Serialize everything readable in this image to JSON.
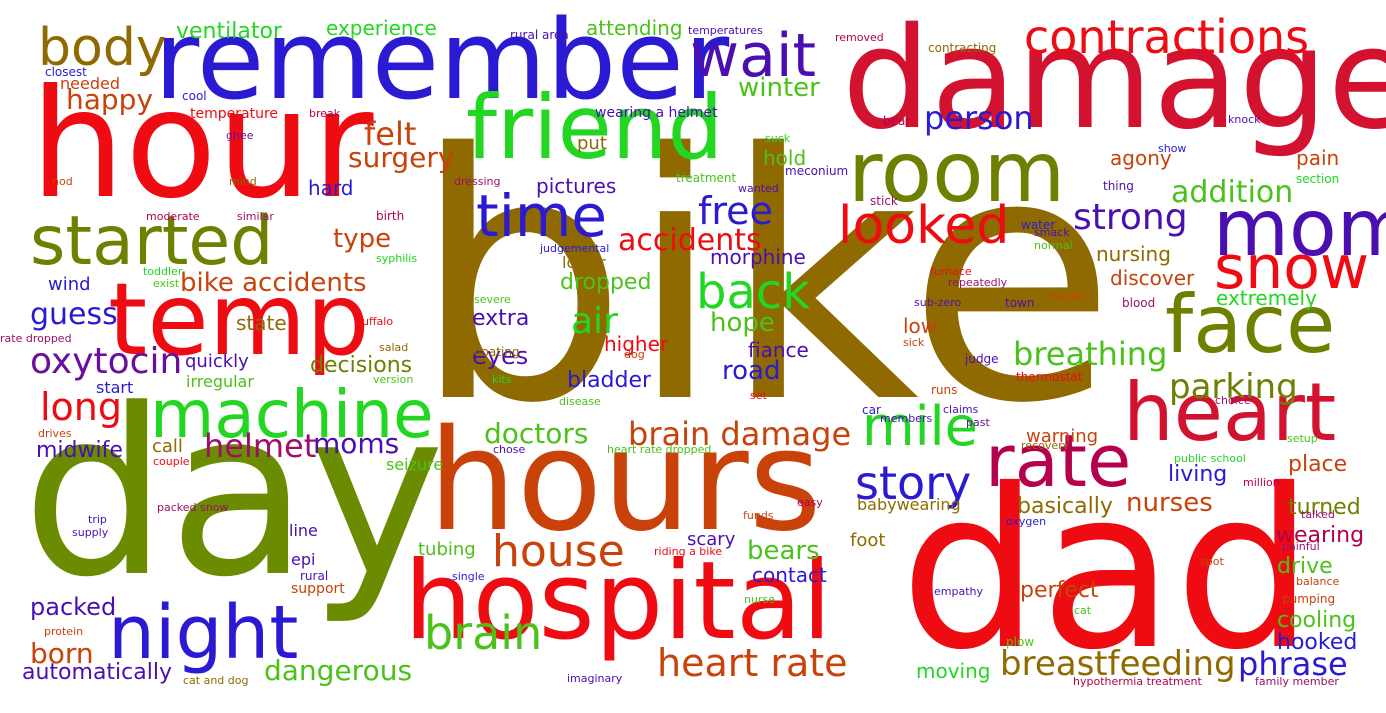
{
  "words": [
    {
      "text": "bike",
      "color": "#8f6a00"
    },
    {
      "text": "damage",
      "color": "#d2122e"
    },
    {
      "text": "dad",
      "color": "#ee0b12"
    },
    {
      "text": "day",
      "color": "#6b8c00"
    },
    {
      "text": "hours",
      "color": "#c8420a"
    },
    {
      "text": "hour",
      "color": "#ee0b12"
    },
    {
      "text": "remember",
      "color": "#2a1bd2"
    },
    {
      "text": "hospital",
      "color": "#ee0b12"
    },
    {
      "text": "room",
      "color": "#6f7f00"
    },
    {
      "text": "temp",
      "color": "#ee0b12"
    },
    {
      "text": "friend",
      "color": "#22d622"
    },
    {
      "text": "face",
      "color": "#6f7f00"
    },
    {
      "text": "heart",
      "color": "#d2122e"
    },
    {
      "text": "machine",
      "color": "#22d622"
    },
    {
      "text": "night",
      "color": "#2a1bd2"
    },
    {
      "text": "started",
      "color": "#6f7f00"
    },
    {
      "text": "rate",
      "color": "#b5004e"
    },
    {
      "text": "mom",
      "color": "#4b0fb1"
    },
    {
      "text": "time",
      "color": "#2a1bd2"
    },
    {
      "text": "wait",
      "color": "#4b0fb1"
    },
    {
      "text": "body",
      "color": "#8f6a00"
    },
    {
      "text": "snow",
      "color": "#ee0b12"
    },
    {
      "text": "contractions",
      "color": "#ee0b12"
    },
    {
      "text": "mile",
      "color": "#22d622"
    },
    {
      "text": "looked",
      "color": "#ee0b12"
    },
    {
      "text": "back",
      "color": "#22d622"
    },
    {
      "text": "house",
      "color": "#c8420a"
    },
    {
      "text": "brain",
      "color": "#4bc21a"
    },
    {
      "text": "heart rate",
      "color": "#c8420a"
    },
    {
      "text": "story",
      "color": "#2a1bd2"
    },
    {
      "text": "breastfeeding",
      "color": "#8f6a00"
    },
    {
      "text": "strong",
      "color": "#4b0fb1"
    },
    {
      "text": "free",
      "color": "#2a1bd2"
    },
    {
      "text": "long",
      "color": "#ee0b12"
    },
    {
      "text": "oxytocin",
      "color": "#6a0f9c"
    },
    {
      "text": "breathing",
      "color": "#4bc21a"
    },
    {
      "text": "brain damage",
      "color": "#c8420a"
    },
    {
      "text": "parking",
      "color": "#6f7f00"
    },
    {
      "text": "helmet",
      "color": "#9c0f6a"
    },
    {
      "text": "doctors",
      "color": "#4bc21a"
    },
    {
      "text": "addition",
      "color": "#4bc21a"
    },
    {
      "text": "accidents",
      "color": "#ee0b12"
    },
    {
      "text": "felt",
      "color": "#c8420a"
    },
    {
      "text": "person",
      "color": "#2a1bd2"
    },
    {
      "text": "surgery",
      "color": "#c8420a"
    },
    {
      "text": "happy",
      "color": "#c8420a"
    },
    {
      "text": "winter",
      "color": "#4bc21a"
    },
    {
      "text": "guess",
      "color": "#2a1bd2"
    },
    {
      "text": "bike accidents",
      "color": "#c8420a"
    },
    {
      "text": "moms",
      "color": "#4b0fb1"
    },
    {
      "text": "dangerous",
      "color": "#4bc21a"
    },
    {
      "text": "air",
      "color": "#22d622"
    },
    {
      "text": "phrase",
      "color": "#2a1bd2"
    },
    {
      "text": "born",
      "color": "#c8420a"
    },
    {
      "text": "hope",
      "color": "#4bc21a"
    },
    {
      "text": "bears",
      "color": "#4bc21a"
    },
    {
      "text": "road",
      "color": "#2a1bd2"
    },
    {
      "text": "nurses",
      "color": "#c8420a"
    },
    {
      "text": "type",
      "color": "#c8420a"
    },
    {
      "text": "packed",
      "color": "#4b0fb1"
    },
    {
      "text": "ventilator",
      "color": "#22d622"
    },
    {
      "text": "experience",
      "color": "#22d622"
    },
    {
      "text": "attending",
      "color": "#4bc21a"
    },
    {
      "text": "dropped",
      "color": "#4bc21a"
    },
    {
      "text": "extra",
      "color": "#4b0fb1"
    },
    {
      "text": "eyes",
      "color": "#4b0fb1"
    },
    {
      "text": "bladder",
      "color": "#2a1bd2"
    },
    {
      "text": "contact",
      "color": "#2a1bd2"
    },
    {
      "text": "living",
      "color": "#2a1bd2"
    },
    {
      "text": "wearing",
      "color": "#b5004e"
    },
    {
      "text": "drive",
      "color": "#4bc21a"
    },
    {
      "text": "cooling",
      "color": "#4bc21a"
    },
    {
      "text": "hooked",
      "color": "#2a1bd2"
    },
    {
      "text": "perfect",
      "color": "#c8420a"
    },
    {
      "text": "automatically",
      "color": "#4b0fb1"
    },
    {
      "text": "moving",
      "color": "#22d622"
    },
    {
      "text": "decisions",
      "color": "#6f7f00"
    },
    {
      "text": "pictures",
      "color": "#4b0fb1"
    },
    {
      "text": "hold",
      "color": "#4bc21a"
    },
    {
      "text": "hard",
      "color": "#2a1bd2"
    },
    {
      "text": "midwife",
      "color": "#4b0fb1"
    },
    {
      "text": "place",
      "color": "#c8420a"
    },
    {
      "text": "basically",
      "color": "#8f6a00"
    },
    {
      "text": "turned",
      "color": "#6f7f00"
    },
    {
      "text": "extremely",
      "color": "#22d622"
    },
    {
      "text": "nursing",
      "color": "#8f6a00"
    },
    {
      "text": "discover",
      "color": "#c8420a"
    },
    {
      "text": "low",
      "color": "#c8420a"
    },
    {
      "text": "fiance",
      "color": "#4b0fb1"
    },
    {
      "text": "morphine",
      "color": "#4b0fb1"
    },
    {
      "text": "agony",
      "color": "#c8420a"
    },
    {
      "text": "pain",
      "color": "#c8420a"
    },
    {
      "text": "higher",
      "color": "#ee0b12"
    },
    {
      "text": "quickly",
      "color": "#4b0fb1"
    },
    {
      "text": "state",
      "color": "#8f6a00"
    },
    {
      "text": "wind",
      "color": "#2a1bd2"
    },
    {
      "text": "start",
      "color": "#2a1bd2"
    },
    {
      "text": "irregular",
      "color": "#4bc21a"
    },
    {
      "text": "call",
      "color": "#8f6a00"
    },
    {
      "text": "seizure",
      "color": "#4bc21a"
    },
    {
      "text": "scary",
      "color": "#4b0fb1"
    },
    {
      "text": "tubing",
      "color": "#4bc21a"
    },
    {
      "text": "epi",
      "color": "#4b0fb1"
    },
    {
      "text": "line",
      "color": "#4b0fb1"
    },
    {
      "text": "foot",
      "color": "#8f6a00"
    },
    {
      "text": "warning",
      "color": "#c8420a"
    },
    {
      "text": "babywearing",
      "color": "#8f6a00"
    },
    {
      "text": "lower",
      "color": "#8f6a00"
    },
    {
      "text": "put",
      "color": "#8f6a00"
    },
    {
      "text": "needed",
      "color": "#c8420a"
    },
    {
      "text": "temperature",
      "color": "#ee0b12"
    },
    {
      "text": "wearing a helmet",
      "color": "#4b0fb1"
    },
    {
      "text": "treatment",
      "color": "#4bc21a"
    },
    {
      "text": "rural area",
      "color": "#4b0fb1"
    },
    {
      "text": "temperatures",
      "color": "#4b0fb1"
    },
    {
      "text": "removed",
      "color": "#b5004e"
    },
    {
      "text": "contracting",
      "color": "#8f6a00"
    },
    {
      "text": "closest",
      "color": "#2a1bd2"
    },
    {
      "text": "cool",
      "color": "#2a1bd2"
    },
    {
      "text": "break",
      "color": "#b5004e"
    },
    {
      "text": "ghee",
      "color": "#6a0f9c"
    },
    {
      "text": "mind",
      "color": "#8f6a00"
    },
    {
      "text": "nod",
      "color": "#c8420a"
    },
    {
      "text": "moderate",
      "color": "#b5004e"
    },
    {
      "text": "similar",
      "color": "#9c0f6a"
    },
    {
      "text": "birth",
      "color": "#b5004e"
    },
    {
      "text": "syphilis",
      "color": "#22d622"
    },
    {
      "text": "toddler",
      "color": "#22d622"
    },
    {
      "text": "exist",
      "color": "#4bc21a"
    },
    {
      "text": "buffalo",
      "color": "#ee0b12"
    },
    {
      "text": "rate dropped",
      "color": "#9c0f6a"
    },
    {
      "text": "salad",
      "color": "#8f6a00"
    },
    {
      "text": "version",
      "color": "#4bc21a"
    },
    {
      "text": "drives",
      "color": "#c8420a"
    },
    {
      "text": "couple",
      "color": "#ee0b12"
    },
    {
      "text": "packed snow",
      "color": "#9c0f6a"
    },
    {
      "text": "trip",
      "color": "#2a1bd2"
    },
    {
      "text": "supply",
      "color": "#4b0fb1"
    },
    {
      "text": "protein",
      "color": "#c8420a"
    },
    {
      "text": "cat and dog",
      "color": "#8f6a00"
    },
    {
      "text": "imaginary",
      "color": "#4b0fb1"
    },
    {
      "text": "rural",
      "color": "#4b0fb1"
    },
    {
      "text": "support",
      "color": "#c8420a"
    },
    {
      "text": "single",
      "color": "#2a1bd2"
    },
    {
      "text": "riding a bike",
      "color": "#ee0b12"
    },
    {
      "text": "nurse",
      "color": "#4bc21a"
    },
    {
      "text": "empathy",
      "color": "#4b0fb1"
    },
    {
      "text": "cat",
      "color": "#4bc21a"
    },
    {
      "text": "plow",
      "color": "#4bc21a"
    },
    {
      "text": "hypothermia treatment",
      "color": "#b5004e"
    },
    {
      "text": "family member",
      "color": "#9c0f6a"
    },
    {
      "text": "oxygen",
      "color": "#2a1bd2"
    },
    {
      "text": "funds",
      "color": "#c8420a"
    },
    {
      "text": "easy",
      "color": "#b5004e"
    },
    {
      "text": "spot",
      "color": "#c8420a"
    },
    {
      "text": "balance",
      "color": "#c8420a"
    },
    {
      "text": "pumping",
      "color": "#c8420a"
    },
    {
      "text": "painful",
      "color": "#9c0f6a"
    },
    {
      "text": "talked",
      "color": "#9c0f6a"
    },
    {
      "text": "million",
      "color": "#b5004e"
    },
    {
      "text": "public school",
      "color": "#22d622"
    },
    {
      "text": "setup",
      "color": "#4bc21a"
    },
    {
      "text": "recovery",
      "color": "#8f6a00"
    },
    {
      "text": "chose",
      "color": "#4b0fb1"
    },
    {
      "text": "heart rate dropped",
      "color": "#4bc21a"
    },
    {
      "text": "members",
      "color": "#4b0fb1"
    },
    {
      "text": "car",
      "color": "#2a1bd2"
    },
    {
      "text": "claims",
      "color": "#4b0fb1"
    },
    {
      "text": "past",
      "color": "#6a0f9c"
    },
    {
      "text": "choice",
      "color": "#9c0f6a"
    },
    {
      "text": "disease",
      "color": "#4bc21a"
    },
    {
      "text": "set",
      "color": "#ee0b12"
    },
    {
      "text": "kits",
      "color": "#22d622"
    },
    {
      "text": "runs",
      "color": "#c8420a"
    },
    {
      "text": "thermostat",
      "color": "#ee0b12"
    },
    {
      "text": "judge",
      "color": "#4b0fb1"
    },
    {
      "text": "sick",
      "color": "#c8420a"
    },
    {
      "text": "dog",
      "color": "#c8420a"
    },
    {
      "text": "town",
      "color": "#4b0fb1"
    },
    {
      "text": "sub-zero",
      "color": "#4b0fb1"
    },
    {
      "text": "moved",
      "color": "#c8420a"
    },
    {
      "text": "blood",
      "color": "#9c0f6a"
    },
    {
      "text": "severe",
      "color": "#4bc21a"
    },
    {
      "text": "floating",
      "color": "#8f6a00"
    },
    {
      "text": "furnace",
      "color": "#ee0b12"
    },
    {
      "text": "repeatedly",
      "color": "#9c0f6a"
    },
    {
      "text": "water",
      "color": "#2a1bd2"
    },
    {
      "text": "smack",
      "color": "#4b0fb1"
    },
    {
      "text": "normal",
      "color": "#4bc21a"
    },
    {
      "text": "stick",
      "color": "#9c0f6a"
    },
    {
      "text": "judgemental",
      "color": "#2a1bd2"
    },
    {
      "text": "wanted",
      "color": "#4b0fb1"
    },
    {
      "text": "dressing",
      "color": "#9c0f6a"
    },
    {
      "text": "meconium",
      "color": "#4b0fb1"
    },
    {
      "text": "suck",
      "color": "#22d622"
    },
    {
      "text": "bear",
      "color": "#b5004e"
    },
    {
      "text": "show",
      "color": "#2a1bd2"
    },
    {
      "text": "thing",
      "color": "#4b0fb1"
    },
    {
      "text": "section",
      "color": "#22d622"
    },
    {
      "text": "knock",
      "color": "#4b0fb1"
    }
  ]
}
